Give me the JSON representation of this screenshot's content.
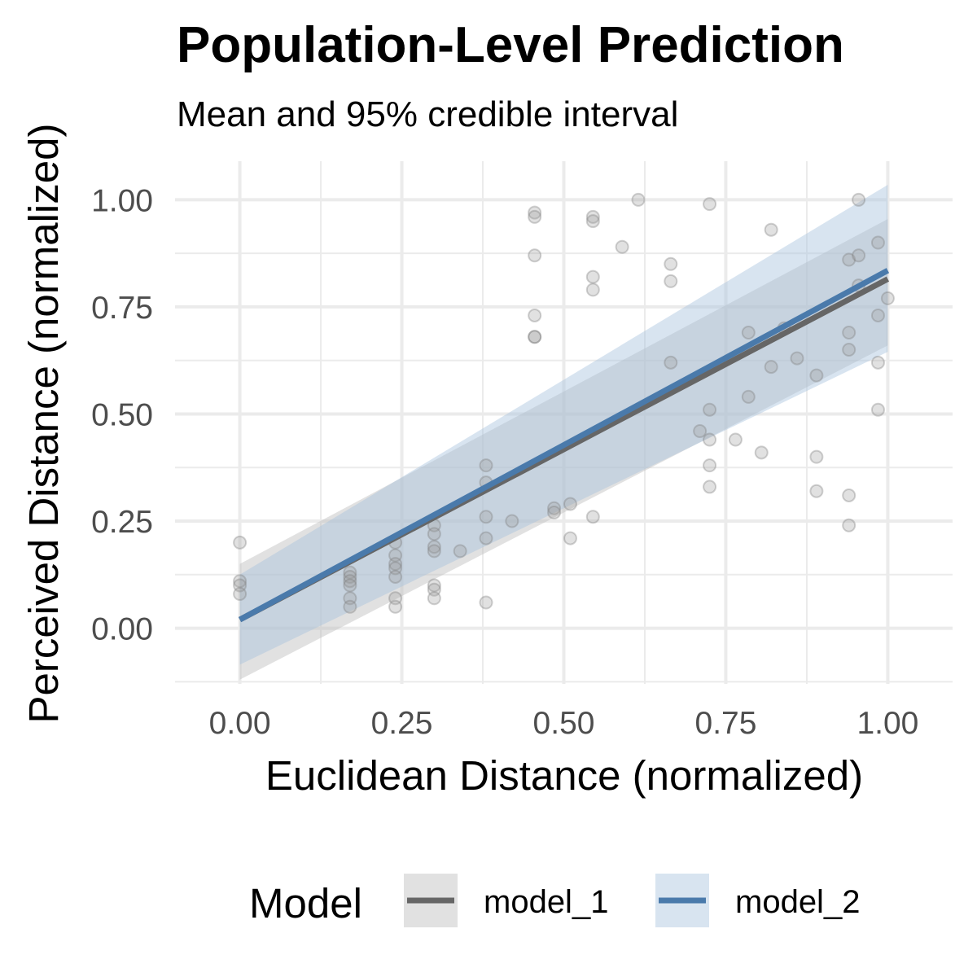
{
  "chart_data": {
    "type": "scatter",
    "title": "Population-Level Prediction",
    "subtitle": "Mean and 95% credible interval",
    "xlabel": "Euclidean Distance (normalized)",
    "ylabel": "Perceived Distance (normalized)",
    "xlim": [
      -0.1,
      1.1
    ],
    "ylim": [
      -0.13,
      1.09
    ],
    "x_ticks": [
      "0.00",
      "0.25",
      "0.50",
      "0.75",
      "1.00"
    ],
    "y_ticks": [
      "0.00",
      "0.25",
      "0.50",
      "0.75",
      "1.00"
    ],
    "grid": true,
    "legend": {
      "title": "Model",
      "position": "bottom"
    },
    "points": [
      [
        0.0,
        0.2
      ],
      [
        0.0,
        0.11
      ],
      [
        0.0,
        0.1
      ],
      [
        0.0,
        0.08
      ],
      [
        0.17,
        0.13
      ],
      [
        0.17,
        0.12
      ],
      [
        0.17,
        0.11
      ],
      [
        0.17,
        0.1
      ],
      [
        0.17,
        0.07
      ],
      [
        0.17,
        0.05
      ],
      [
        0.24,
        0.2
      ],
      [
        0.24,
        0.17
      ],
      [
        0.24,
        0.15
      ],
      [
        0.24,
        0.14
      ],
      [
        0.24,
        0.12
      ],
      [
        0.24,
        0.07
      ],
      [
        0.24,
        0.05
      ],
      [
        0.3,
        0.24
      ],
      [
        0.3,
        0.22
      ],
      [
        0.3,
        0.19
      ],
      [
        0.3,
        0.18
      ],
      [
        0.3,
        0.1
      ],
      [
        0.3,
        0.09
      ],
      [
        0.3,
        0.07
      ],
      [
        0.34,
        0.18
      ],
      [
        0.38,
        0.38
      ],
      [
        0.38,
        0.34
      ],
      [
        0.38,
        0.26
      ],
      [
        0.38,
        0.21
      ],
      [
        0.38,
        0.06
      ],
      [
        0.42,
        0.25
      ],
      [
        0.455,
        0.97
      ],
      [
        0.455,
        0.96
      ],
      [
        0.455,
        0.87
      ],
      [
        0.455,
        0.73
      ],
      [
        0.455,
        0.68
      ],
      [
        0.455,
        0.68
      ],
      [
        0.485,
        0.28
      ],
      [
        0.485,
        0.27
      ],
      [
        0.51,
        0.29
      ],
      [
        0.51,
        0.21
      ],
      [
        0.545,
        0.96
      ],
      [
        0.545,
        0.95
      ],
      [
        0.545,
        0.82
      ],
      [
        0.545,
        0.79
      ],
      [
        0.545,
        0.26
      ],
      [
        0.59,
        0.89
      ],
      [
        0.615,
        1.0
      ],
      [
        0.665,
        0.85
      ],
      [
        0.665,
        0.81
      ],
      [
        0.665,
        0.62
      ],
      [
        0.71,
        0.46
      ],
      [
        0.725,
        0.99
      ],
      [
        0.725,
        0.51
      ],
      [
        0.725,
        0.44
      ],
      [
        0.725,
        0.38
      ],
      [
        0.725,
        0.33
      ],
      [
        0.765,
        0.44
      ],
      [
        0.785,
        0.69
      ],
      [
        0.785,
        0.54
      ],
      [
        0.805,
        0.41
      ],
      [
        0.82,
        0.93
      ],
      [
        0.82,
        0.61
      ],
      [
        0.84,
        0.7
      ],
      [
        0.86,
        0.63
      ],
      [
        0.89,
        0.59
      ],
      [
        0.89,
        0.4
      ],
      [
        0.89,
        0.32
      ],
      [
        0.94,
        0.86
      ],
      [
        0.94,
        0.69
      ],
      [
        0.94,
        0.65
      ],
      [
        0.94,
        0.31
      ],
      [
        0.94,
        0.24
      ],
      [
        0.955,
        1.0
      ],
      [
        0.955,
        0.87
      ],
      [
        0.955,
        0.8
      ],
      [
        0.985,
        0.9
      ],
      [
        0.985,
        0.73
      ],
      [
        0.985,
        0.62
      ],
      [
        0.985,
        0.51
      ],
      [
        1.0,
        0.77
      ]
    ],
    "series": [
      {
        "name": "model_1",
        "color": "#666666",
        "ribbon_color": "#bdbdbd",
        "mean": [
          [
            0.0,
            0.02
          ],
          [
            1.0,
            0.815
          ]
        ],
        "lower": [
          [
            0.0,
            -0.12
          ],
          [
            1.0,
            0.66
          ]
        ],
        "upper": [
          [
            0.0,
            0.15
          ],
          [
            1.0,
            0.955
          ]
        ]
      },
      {
        "name": "model_2",
        "color": "#4a7aab",
        "ribbon_color": "#a9c4dd",
        "mean": [
          [
            0.0,
            0.02
          ],
          [
            1.0,
            0.835
          ]
        ],
        "lower": [
          [
            0.0,
            -0.085
          ],
          [
            1.0,
            0.645
          ]
        ],
        "upper": [
          [
            0.0,
            0.125
          ],
          [
            1.0,
            1.035
          ]
        ]
      }
    ]
  }
}
